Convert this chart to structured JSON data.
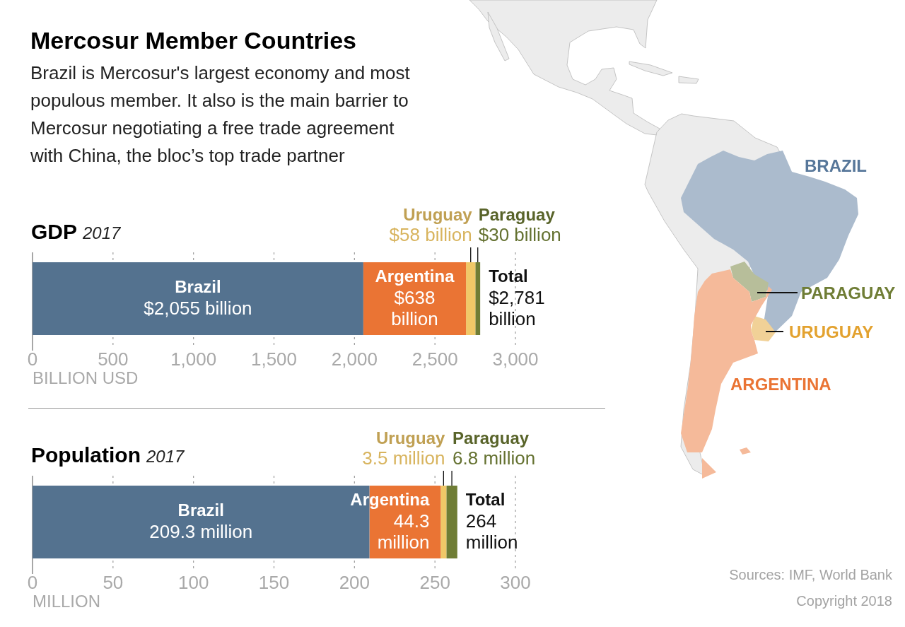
{
  "chart_data": [
    {
      "type": "other",
      "title": "Mercosur Member Countries",
      "subtitle": "Brazil is Mercosur's largest economy and most populous member. It also is the main barrier to Mercosur negotiating a free trade agreement with China, the bloc’s top trade partner",
      "categories": [
        "BRAZIL",
        "PARAGUAY",
        "URUGUAY",
        "ARGENTINA"
      ],
      "colors": [
        "#57779a",
        "#6f7d35",
        "#e3a22f",
        "#ea7434"
      ],
      "annotations": [
        "Sources: IMF, World Bank",
        "Copyright 2018"
      ]
    },
    {
      "type": "bar",
      "orientation": "horizontal",
      "stacked": true,
      "title": "GDP 2017",
      "xlabel": "BILLION USD",
      "categories": [
        null
      ],
      "series": [
        {
          "name": "Brazil",
          "color": "#54728f",
          "values": [
            2055
          ],
          "value_labels": [
            "$2,055 billion"
          ]
        },
        {
          "name": "Argentina",
          "color": "#ea7434",
          "values": [
            638
          ],
          "value_labels": [
            "$638 billion"
          ]
        },
        {
          "name": "Uruguay",
          "color": "#f0c868",
          "values": [
            58
          ],
          "value_labels": [
            "$58 billion"
          ]
        },
        {
          "name": "Paraguay",
          "color": "#6f7d35",
          "values": [
            30
          ],
          "value_labels": [
            "$30 billion"
          ]
        }
      ],
      "xlim": [
        0,
        3000
      ],
      "xticks": [
        0,
        500,
        {
          "value": 1000,
          "label": "1,000"
        },
        {
          "value": 1500,
          "label": "1,500"
        },
        {
          "value": 2000,
          "label": "2,000"
        },
        {
          "value": 2500,
          "label": "2,500"
        },
        {
          "value": 3000,
          "label": "3,000"
        }
      ],
      "grid": "x",
      "totals": [
        "Total $2,781 billion"
      ]
    },
    {
      "type": "bar",
      "orientation": "horizontal",
      "stacked": true,
      "title": "Population 2017",
      "xlabel": "MILLION",
      "categories": [
        null
      ],
      "series": [
        {
          "name": "Brazil",
          "color": "#54728f",
          "values": [
            209.3
          ],
          "value_labels": [
            "209.3 million"
          ]
        },
        {
          "name": "Argentina",
          "color": "#ea7434",
          "values": [
            44.3
          ],
          "value_labels": [
            "44.3 million"
          ]
        },
        {
          "name": "Uruguay",
          "color": "#f0c868",
          "values": [
            3.5
          ],
          "value_labels": [
            "3.5 million"
          ]
        },
        {
          "name": "Paraguay",
          "color": "#6f7d35",
          "values": [
            6.8
          ],
          "value_labels": [
            "6.8 million"
          ]
        }
      ],
      "xlim": [
        0,
        300
      ],
      "xticks": [
        0,
        50,
        100,
        150,
        200,
        250,
        300
      ],
      "grid": "x",
      "totals": [
        "Total 264 million"
      ]
    }
  ]
}
